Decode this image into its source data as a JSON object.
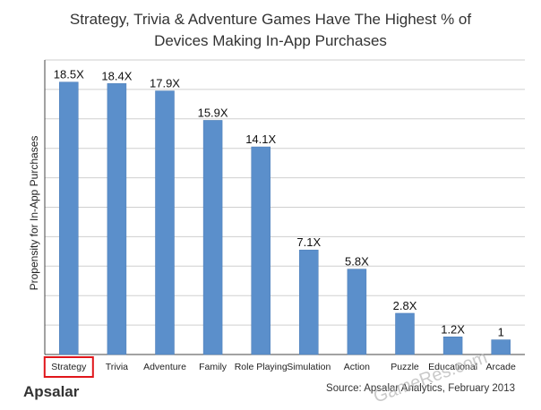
{
  "chart_data": {
    "type": "bar",
    "title_line1": "Strategy, Trivia & Adventure Games Have The Highest % of",
    "title_line2": "Devices Making In-App Purchases",
    "xlabel": "",
    "ylabel": "Propensity for In-App Purchases",
    "categories": [
      "Strategy",
      "Trivia",
      "Adventure",
      "Family",
      "Role Playing",
      "Simulation",
      "Action",
      "Puzzle",
      "Educational",
      "Arcade"
    ],
    "values": [
      18.5,
      18.4,
      17.9,
      15.9,
      14.1,
      7.1,
      5.8,
      2.8,
      1.2,
      1
    ],
    "data_labels": [
      "18.5X",
      "18.4X",
      "17.9X",
      "15.9X",
      "14.1X",
      "7.1X",
      "5.8X",
      "2.8X",
      "1.2X",
      "1"
    ],
    "ylim": [
      0,
      20
    ],
    "ytick_step": 2,
    "ytick_labels_shown": false,
    "grid": true,
    "bar_color": "#5b8fcb",
    "highlight_category": "Strategy",
    "highlight_color": "#e0161b"
  },
  "footer": {
    "source": "Source: Apsalar Analytics, February 2013",
    "brand": "Apsalar",
    "watermark": "GameRes.com"
  }
}
